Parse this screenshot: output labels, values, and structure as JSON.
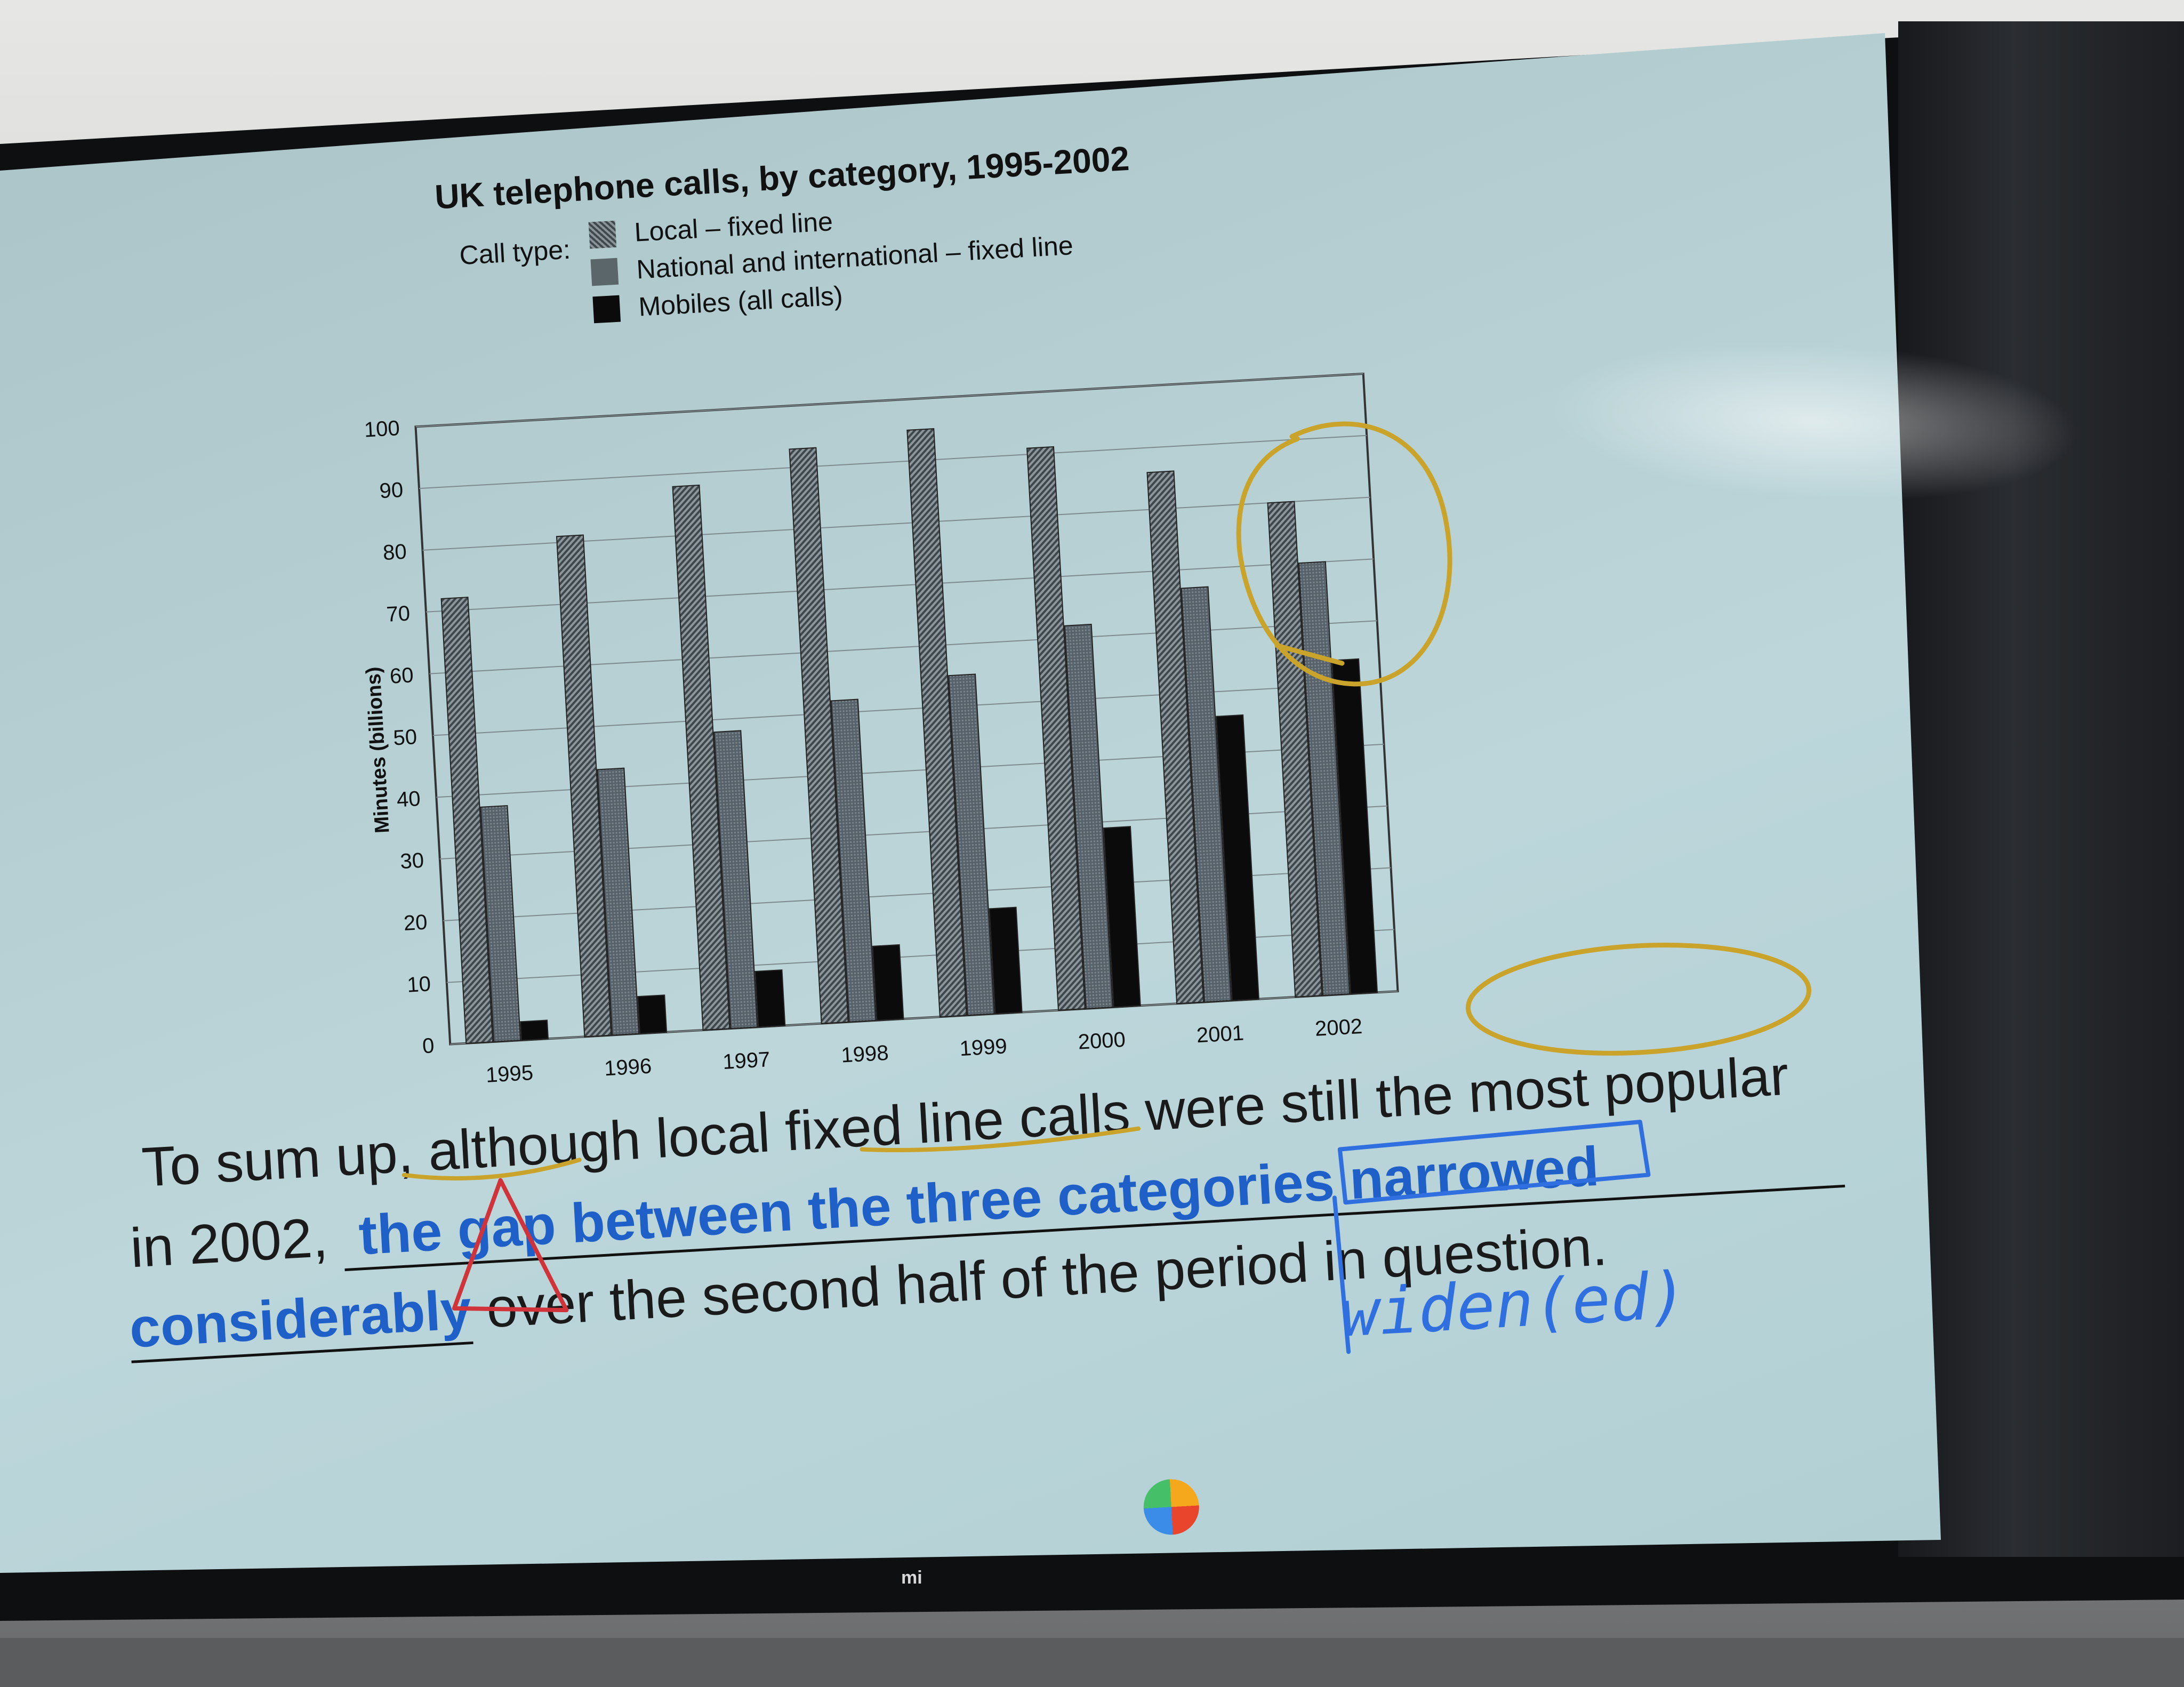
{
  "chart_data": {
    "type": "bar",
    "title": "UK telephone calls, by category, 1995-2002",
    "legend_label": "Call type:",
    "ylabel": "Minutes (billions)",
    "xlabel": "",
    "ylim": [
      0,
      100
    ],
    "yticks": [
      0,
      10,
      20,
      30,
      40,
      50,
      60,
      70,
      80,
      90,
      100
    ],
    "categories": [
      "1995",
      "1996",
      "1997",
      "1998",
      "1999",
      "2000",
      "2001",
      "2002"
    ],
    "series": [
      {
        "name": "Local – fixed line",
        "values": [
          72,
          81,
          88,
          93,
          95,
          91,
          86,
          80
        ],
        "color": "#5a6468"
      },
      {
        "name": "National and international – fixed line",
        "values": [
          38,
          43,
          48,
          52,
          55,
          62,
          67,
          70
        ],
        "color": "#4b5559"
      },
      {
        "name": "Mobiles (all calls)",
        "values": [
          3,
          6,
          9,
          12,
          17,
          29,
          46,
          54
        ],
        "color": "#0b0b0b"
      }
    ],
    "grid": true,
    "legend_position": "top-left"
  },
  "sentence": {
    "line1": "To sum up, although local fixed line calls were still the most popular",
    "line2_prefix": "in 2002,",
    "line2_answer": "the gap between the three categories narrowed",
    "line3_answer": "considerably",
    "line3_suffix": "over the second half of the period in question."
  },
  "handwriting": {
    "note": "widen(ed)"
  },
  "colors": {
    "answer_text": "#1e5fc8",
    "pen_yellow": "#c9a32a",
    "pen_blue": "#2f6fe0",
    "pen_red": "#d0343a"
  },
  "tv": {
    "brand": "mi"
  }
}
